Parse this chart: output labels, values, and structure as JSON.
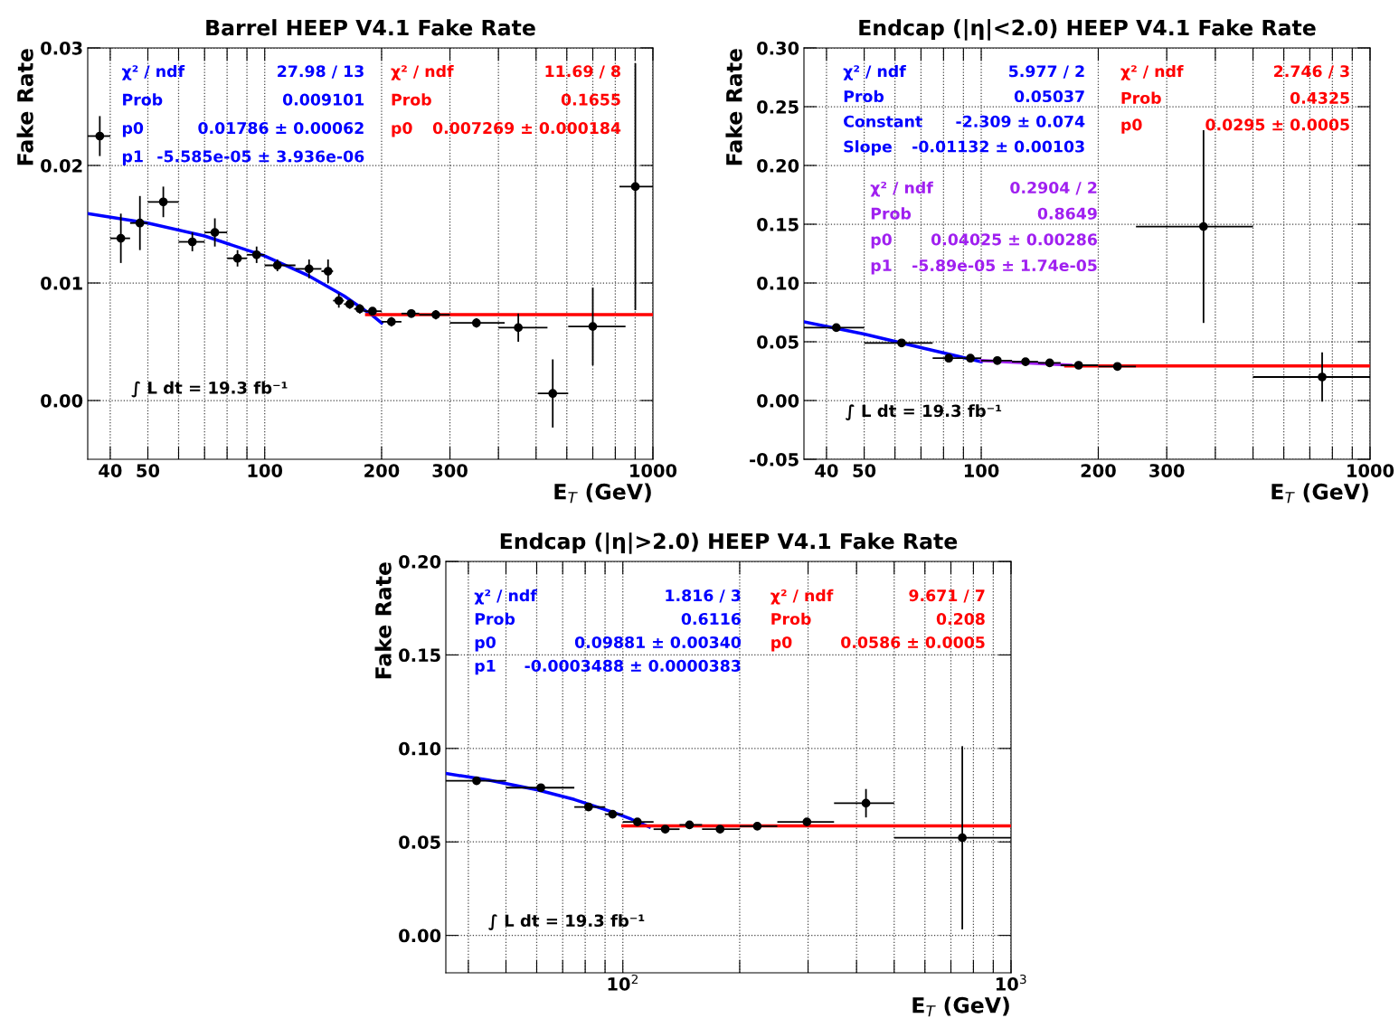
{
  "chart_data": [
    {
      "type": "scatter",
      "title": "Barrel HEEP V4.1 Fake Rate",
      "xlabel": "E$_{T}$ (GeV)",
      "ylabel": "Fake Rate",
      "log": "x",
      "grid": true,
      "marker": "circle",
      "xlim": [
        35,
        1000
      ],
      "ylim": [
        -0.005,
        0.03
      ],
      "xticks": [
        40,
        50,
        {
          "value": 60,
          "label": null
        },
        {
          "value": 70,
          "label": null
        },
        {
          "value": 80,
          "label": null
        },
        {
          "value": 90,
          "label": null
        },
        100,
        200,
        300,
        {
          "value": 400,
          "label": null
        },
        {
          "value": 500,
          "label": null
        },
        {
          "value": 600,
          "label": null
        },
        {
          "value": 700,
          "label": null
        },
        {
          "value": 800,
          "label": null
        },
        {
          "value": 900,
          "label": null
        },
        1000
      ],
      "yticks": [
        {
          "value": 0,
          "label": "0.00"
        },
        0.01,
        0.02,
        0.03
      ],
      "series": [
        {
          "color": "#000000",
          "x": [
            37.6,
            42.6,
            47.7,
            54.8,
            65.1,
            74.4,
            85.1,
            95.3,
            107.8,
            130.1,
            145.6,
            155.2,
            165.6,
            175.8,
            189.5,
            212,
            238.6,
            275.9,
            351,
            450,
            552,
            700,
            901
          ],
          "values": [
            0.0225,
            0.0138,
            0.0151,
            0.0169,
            0.0135,
            0.0143,
            0.0121,
            0.0124,
            0.0115,
            0.0112,
            0.011,
            0.0085,
            0.0082,
            0.0078,
            0.0076,
            0.0067,
            0.0074,
            0.0073,
            0.0066,
            0.0062,
            0.0006,
            0.0063,
            0.0182
          ],
          "errors": [
            0.0017,
            0.0021,
            0.0023,
            0.0013,
            0.0008,
            0.0012,
            0.0007,
            0.0007,
            0.0005,
            0.0008,
            0.001,
            0.0006,
            0.0004,
            0.0004,
            0.0003,
            0.0004,
            0.0003,
            0.0004,
            0.0004,
            0.0012,
            0.0029,
            0.0033,
            0.0105
          ],
          "xerrors": [
            [
              35,
              40
            ],
            [
              40,
              45
            ],
            [
              45,
              50
            ],
            [
              50,
              60
            ],
            [
              60,
              70
            ],
            [
              70,
              80
            ],
            [
              80,
              90
            ],
            [
              90,
              100
            ],
            [
              100,
              120
            ],
            [
              120,
              140
            ],
            [
              140,
              150
            ],
            [
              150,
              160
            ],
            [
              160,
              170
            ],
            [
              170,
              180
            ],
            [
              180,
              200
            ],
            [
              200,
              225
            ],
            [
              225,
              250
            ],
            [
              250,
              300
            ],
            [
              300,
              415
            ],
            [
              400,
              535
            ],
            [
              505,
              605
            ],
            [
              605,
              850
            ],
            [
              820,
              1000
            ]
          ]
        },
        {
          "type": "line",
          "marker": "none",
          "color": "#0000ff",
          "x": [
            35,
            50,
            70,
            100,
            130,
            160,
            190,
            200
          ],
          "values": [
            0.0159,
            0.0151,
            0.014,
            0.0123,
            0.0106,
            0.0089,
            0.0072,
            0.0066
          ]
        },
        {
          "type": "line",
          "marker": "none",
          "color": "#ff0000",
          "x": [
            183,
            1000
          ],
          "values": [
            0.0073,
            0.0073
          ]
        }
      ],
      "annotations": [
        "χ² / ndf",
        "27.98 / 13",
        "Prob",
        "0.009101",
        "p0",
        "0.01786 ± 0.00062",
        "p1",
        "-5.585e-05 ± 3.936e-06",
        "χ² / ndf",
        "11.69 / 8",
        "Prob",
        "0.1655",
        "p0",
        "0.007269 ± 0.000184",
        "∫ L dt = 19.3 fb⁻¹"
      ]
    },
    {
      "type": "scatter",
      "title": "Endcap (|η|<2.0) HEEP V4.1 Fake Rate",
      "xlabel": "E$_{T}$ (GeV)",
      "ylabel": "Fake Rate",
      "log": "x",
      "grid": true,
      "marker": "circle",
      "xlim": [
        35,
        1000
      ],
      "ylim": [
        -0.05,
        0.3
      ],
      "xticks": [
        40,
        50,
        {
          "value": 60,
          "label": null
        },
        {
          "value": 70,
          "label": null
        },
        {
          "value": 80,
          "label": null
        },
        {
          "value": 90,
          "label": null
        },
        100,
        200,
        300,
        {
          "value": 400,
          "label": null
        },
        {
          "value": 500,
          "label": null
        },
        {
          "value": 600,
          "label": null
        },
        {
          "value": 700,
          "label": null
        },
        {
          "value": 800,
          "label": null
        },
        {
          "value": 900,
          "label": null
        },
        1000
      ],
      "yticks": [
        {
          "value": -0.05,
          "label": "-0.05"
        },
        {
          "value": 0,
          "label": "0.00"
        },
        0.05,
        {
          "value": 0.1,
          "label": "0.10"
        },
        0.15,
        {
          "value": 0.2,
          "label": "0.20"
        },
        0.25,
        {
          "value": 0.3,
          "label": "0.30"
        }
      ],
      "series": [
        {
          "color": "#000000",
          "x": [
            42.4,
            62.4,
            82.5,
            93.8,
            110,
            130,
            150,
            178,
            224,
            373,
            753
          ],
          "values": [
            0.062,
            0.049,
            0.036,
            0.036,
            0.034,
            0.033,
            0.032,
            0.03,
            0.029,
            0.148,
            0.02
          ],
          "errors": [
            0.002,
            0.002,
            0.002,
            0.002,
            0.002,
            0.002,
            0.002,
            0.002,
            0.002,
            0.082,
            0.021
          ],
          "xerrors": [
            [
              35,
              50
            ],
            [
              50,
              75
            ],
            [
              75,
              90
            ],
            [
              90,
              100
            ],
            [
              100,
              120
            ],
            [
              120,
              140
            ],
            [
              140,
              160
            ],
            [
              160,
              200
            ],
            [
              200,
              250
            ],
            [
              250,
              500
            ],
            [
              500,
              1000
            ]
          ]
        },
        {
          "type": "line",
          "marker": "none",
          "color": "#0000ff",
          "x": [
            35,
            50,
            70,
            100
          ],
          "values": [
            0.067,
            0.0565,
            0.045,
            0.033
          ]
        },
        {
          "type": "line",
          "marker": "none",
          "color": "#a020f0",
          "x": [
            100,
            170
          ],
          "values": [
            0.034,
            0.03
          ]
        },
        {
          "type": "line",
          "marker": "none",
          "color": "#ff0000",
          "x": [
            165,
            1000
          ],
          "values": [
            0.0295,
            0.0295
          ]
        }
      ],
      "annotations": [
        "χ² / ndf",
        "5.977 / 2",
        "Prob",
        "0.05037",
        "Constant",
        "-2.309 ± 0.074",
        "Slope",
        "-0.01132 ± 0.00103",
        "χ² / ndf",
        "2.746 / 3",
        "Prob",
        "0.4325",
        "p0",
        "0.0295 ± 0.0005",
        "χ² / ndf",
        "0.2904 / 2",
        "Prob",
        "0.8649",
        "p0",
        "0.04025 ± 0.00286",
        "p1",
        "-5.89e-05 ± 1.74e-05",
        "∫ L dt = 19.3 fb⁻¹"
      ]
    },
    {
      "type": "scatter",
      "title": "Endcap (|η|>2.0) HEEP V4.1 Fake Rate",
      "xlabel": "E$_{T}$ (GeV)",
      "ylabel": "Fake Rate",
      "log": "x",
      "grid": true,
      "marker": "circle",
      "xlim": [
        35,
        1000
      ],
      "ylim": [
        -0.02,
        0.2
      ],
      "xticks": [
        {
          "value": 40,
          "label": null
        },
        {
          "value": 50,
          "label": null
        },
        {
          "value": 60,
          "label": null
        },
        {
          "value": 70,
          "label": null
        },
        {
          "value": 80,
          "label": null
        },
        {
          "value": 90,
          "label": null
        },
        {
          "value": 100,
          "label": "10$^{2}$"
        },
        {
          "value": 200,
          "label": null
        },
        {
          "value": 300,
          "label": null
        },
        {
          "value": 400,
          "label": null
        },
        {
          "value": 500,
          "label": null
        },
        {
          "value": 600,
          "label": null
        },
        {
          "value": 700,
          "label": null
        },
        {
          "value": 800,
          "label": null
        },
        {
          "value": 900,
          "label": null
        },
        {
          "value": 1000,
          "label": "10$^{3}$"
        }
      ],
      "yticks": [
        {
          "value": 0,
          "label": "0.00"
        },
        0.05,
        {
          "value": 0.1,
          "label": "0.10"
        },
        0.15,
        {
          "value": 0.2,
          "label": "0.20"
        }
      ],
      "series": [
        {
          "color": "#000000",
          "x": [
            42,
            61.5,
            81.6,
            94.1,
            109,
            128.6,
            148.5,
            178,
            222,
            298,
            423,
            749
          ],
          "values": [
            0.0827,
            0.079,
            0.0687,
            0.0648,
            0.0607,
            0.0568,
            0.0591,
            0.0568,
            0.0584,
            0.0607,
            0.0707,
            0.0522
          ],
          "errors": [
            0.002,
            0.002,
            0.002,
            0.002,
            0.002,
            0.002,
            0.002,
            0.002,
            0.002,
            0.002,
            0.0076,
            0.049
          ],
          "xerrors": [
            [
              35,
              50
            ],
            [
              50,
              75
            ],
            [
              75,
              90
            ],
            [
              90,
              100
            ],
            [
              100,
              120
            ],
            [
              120,
              140
            ],
            [
              140,
              160
            ],
            [
              160,
              200
            ],
            [
              200,
              250
            ],
            [
              250,
              350
            ],
            [
              350,
              500
            ],
            [
              500,
              1000
            ]
          ]
        },
        {
          "type": "line",
          "marker": "none",
          "color": "#0000ff",
          "x": [
            35,
            45,
            60,
            75,
            94,
            105,
            117
          ],
          "values": [
            0.0866,
            0.0831,
            0.0779,
            0.0727,
            0.066,
            0.0622,
            0.058
          ]
        },
        {
          "type": "line",
          "marker": "none",
          "color": "#ff0000",
          "x": [
            100,
            1000
          ],
          "values": [
            0.0586,
            0.0586
          ]
        }
      ],
      "annotations": [
        "χ² / ndf",
        "1.816 / 3",
        "Prob",
        "0.6116",
        "p0",
        "0.09881 ± 0.00340",
        "p1",
        "-0.0003488 ± 0.0000383",
        "χ² / ndf",
        "9.671 / 7",
        "Prob",
        "0.208",
        "p0",
        "0.0586 ± 0.0005",
        "∫ L dt = 19.3 fb⁻¹"
      ]
    }
  ]
}
